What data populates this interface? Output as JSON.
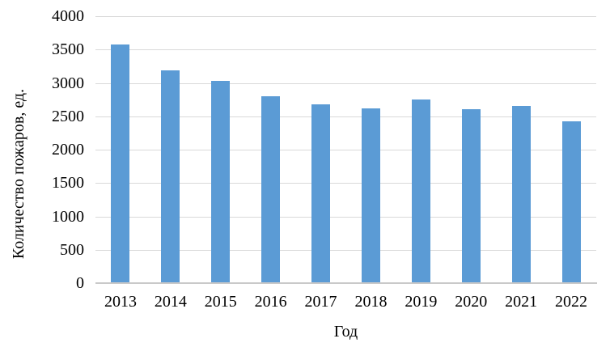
{
  "chart_data": {
    "type": "bar",
    "title": "",
    "categories": [
      "2013",
      "2014",
      "2015",
      "2016",
      "2017",
      "2018",
      "2019",
      "2020",
      "2021",
      "2022"
    ],
    "values": [
      3580,
      3190,
      3030,
      2800,
      2680,
      2620,
      2750,
      2610,
      2650,
      2420
    ],
    "xlabel": "Год",
    "ylabel": "Количество пожаров, ед.",
    "ylim": [
      0,
      4000
    ],
    "yticks": [
      0,
      500,
      1000,
      1500,
      2000,
      2500,
      3000,
      3500,
      4000
    ],
    "grid": true,
    "legend": "none",
    "colors": {
      "bar": "#5B9BD5",
      "gridline": "#D9D9D9",
      "axis_line": "#C9C9C9",
      "text": "#000000",
      "background": "#FFFFFF"
    }
  }
}
